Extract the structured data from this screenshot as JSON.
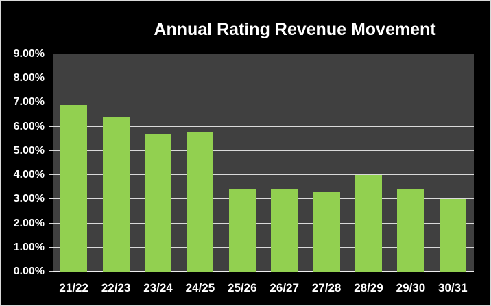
{
  "chart_data": {
    "type": "bar",
    "title": "Annual Rating Revenue Movement",
    "categories": [
      "21/22",
      "22/23",
      "23/24",
      "24/25",
      "25/26",
      "26/27",
      "27/28",
      "28/29",
      "29/30",
      "30/31"
    ],
    "values": [
      6.9,
      6.4,
      5.7,
      5.8,
      3.4,
      3.4,
      3.3,
      4.0,
      3.4,
      3.0
    ],
    "value_unit": "percent",
    "xlabel": "",
    "ylabel": "",
    "ylim": [
      0,
      9
    ],
    "ytick_step": 1,
    "ytick_labels": [
      "0.00%",
      "1.00%",
      "2.00%",
      "3.00%",
      "4.00%",
      "5.00%",
      "6.00%",
      "7.00%",
      "8.00%",
      "9.00%"
    ],
    "grid": "horizontal-major",
    "legend": "none",
    "colors": {
      "bar_fill": "#92D050",
      "plot_background": "#404040",
      "page_background": "#000000",
      "gridline": "#D9D9D9",
      "axis_line": "#EDEDED",
      "text": "#FFFFFF",
      "frame_border": "#D9D9D9"
    }
  }
}
